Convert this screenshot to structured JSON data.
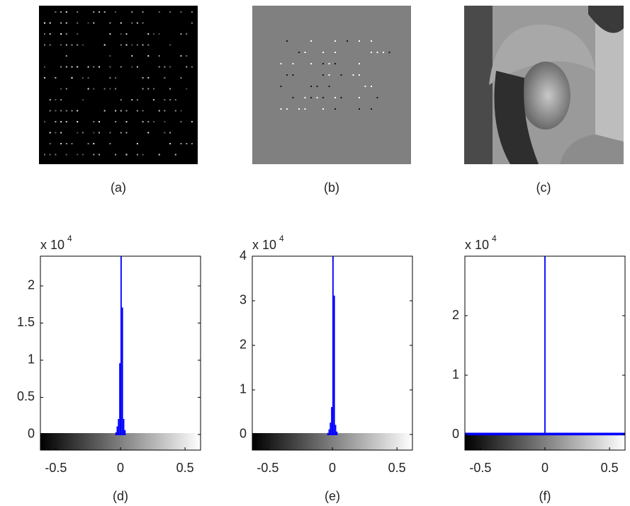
{
  "images": [
    {
      "caption": "(a)"
    },
    {
      "caption": "(b)"
    },
    {
      "caption": "(c)"
    }
  ],
  "chart_data": [
    {
      "type": "histogram",
      "caption": "(d)",
      "y_multiplier": {
        "base": "x 10",
        "exponent": "4"
      },
      "bins": [
        -0.04,
        -0.03,
        -0.02,
        -0.01,
        0,
        0.01,
        0.02,
        0.03,
        0.04
      ],
      "counts": [
        0.02,
        0.1,
        0.2,
        0.95,
        2.4,
        1.7,
        0.2,
        0.05
      ],
      "color": "#0000ff",
      "xlim": [
        -0.62,
        0.62
      ],
      "xticks": [
        -0.5,
        0,
        0.5
      ],
      "ylim": [
        -0.21,
        2.4
      ],
      "yticks": [
        0,
        0.5,
        1,
        1.5,
        2
      ]
    },
    {
      "type": "histogram",
      "caption": "(e)",
      "y_multiplier": {
        "base": "x 10",
        "exponent": "4"
      },
      "bins": [
        -0.04,
        -0.03,
        -0.02,
        -0.01,
        0,
        0.01,
        0.02,
        0.03,
        0.04
      ],
      "counts": [
        0.02,
        0.1,
        0.25,
        0.6,
        4,
        3.1,
        0.2,
        0.05
      ],
      "color": "#0000ff",
      "xlim": [
        -0.62,
        0.62
      ],
      "xticks": [
        -0.5,
        0,
        0.5
      ],
      "ylim": [
        -0.35,
        4
      ],
      "yticks": [
        0,
        1,
        2,
        3,
        4
      ]
    },
    {
      "type": "histogram",
      "caption": "(f)",
      "y_multiplier": {
        "base": "x 10",
        "exponent": "4"
      },
      "bins": [
        -0.62,
        -0.005,
        0.005,
        0.62
      ],
      "counts": [
        0.02,
        3,
        0.02
      ],
      "color": "#0000ff",
      "xlim": [
        -0.62,
        0.62
      ],
      "xticks": [
        -0.5,
        0,
        0.5
      ],
      "ylim": [
        -0.26,
        3
      ],
      "yticks": [
        0,
        1,
        2
      ]
    }
  ]
}
